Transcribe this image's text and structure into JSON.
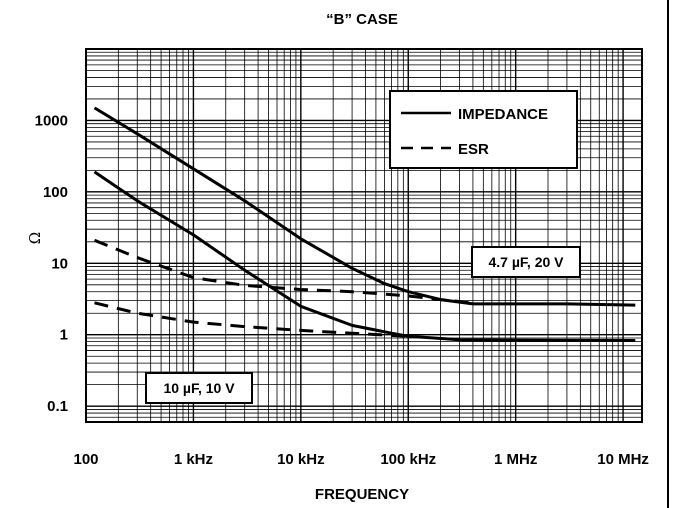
{
  "chart_data": {
    "type": "line",
    "title": "“B” CASE",
    "xlabel": "FREQUENCY",
    "ylabel": "Ω",
    "x_scale": "log",
    "y_scale": "log",
    "xlim": [
      100,
      15000000
    ],
    "ylim": [
      0.06,
      10000
    ],
    "x_ticks": [
      {
        "value": 100,
        "label": "100"
      },
      {
        "value": 1000,
        "label": "1 kHz"
      },
      {
        "value": 10000,
        "label": "10 kHz"
      },
      {
        "value": 100000,
        "label": "100 kHz"
      },
      {
        "value": 1000000,
        "label": "1 MHz"
      },
      {
        "value": 10000000,
        "label": "10 MHz"
      }
    ],
    "y_ticks": [
      {
        "value": 0.1,
        "label": "0.1"
      },
      {
        "value": 1,
        "label": "1"
      },
      {
        "value": 10,
        "label": "10"
      },
      {
        "value": 100,
        "label": "100"
      },
      {
        "value": 1000,
        "label": "1000"
      }
    ],
    "grid": true,
    "legend": {
      "position": "top-right",
      "entries": [
        {
          "label": "IMPEDANCE",
          "style": "solid"
        },
        {
          "label": "ESR",
          "style": "dashed"
        }
      ]
    },
    "annotations": [
      {
        "id": "ann-4p7uf",
        "text": "4.7 µF, 20 V"
      },
      {
        "id": "ann-10uf",
        "text": "10 µF, 10 V"
      }
    ],
    "series": [
      {
        "curve": "impedance-4p7uf",
        "style": "solid",
        "x": [
          120,
          300,
          1000,
          3000,
          10000,
          30000,
          60000,
          100000,
          200000,
          400000,
          1000000,
          3000000,
          13000000
        ],
        "y": [
          1500,
          650,
          210,
          75,
          22,
          8.5,
          5.2,
          4.0,
          3.1,
          2.7,
          2.7,
          2.7,
          2.6
        ]
      },
      {
        "curve": "esr-4p7uf",
        "style": "dashed",
        "x": [
          120,
          300,
          1000,
          3000,
          10000,
          30000,
          100000,
          200000,
          400000
        ],
        "y": [
          21,
          12,
          6.3,
          4.9,
          4.3,
          4.0,
          3.5,
          3.1,
          2.8
        ]
      },
      {
        "curve": "impedance-10uf",
        "style": "solid",
        "x": [
          120,
          300,
          1000,
          3000,
          10000,
          30000,
          60000,
          100000,
          300000,
          1000000,
          13000000
        ],
        "y": [
          190,
          75,
          25,
          8,
          2.5,
          1.35,
          1.1,
          0.95,
          0.85,
          0.84,
          0.83
        ]
      },
      {
        "curve": "esr-10uf",
        "style": "dashed",
        "x": [
          120,
          300,
          1000,
          3000,
          10000,
          30000,
          100000
        ],
        "y": [
          2.8,
          2.0,
          1.5,
          1.3,
          1.15,
          1.05,
          0.95
        ]
      }
    ]
  }
}
